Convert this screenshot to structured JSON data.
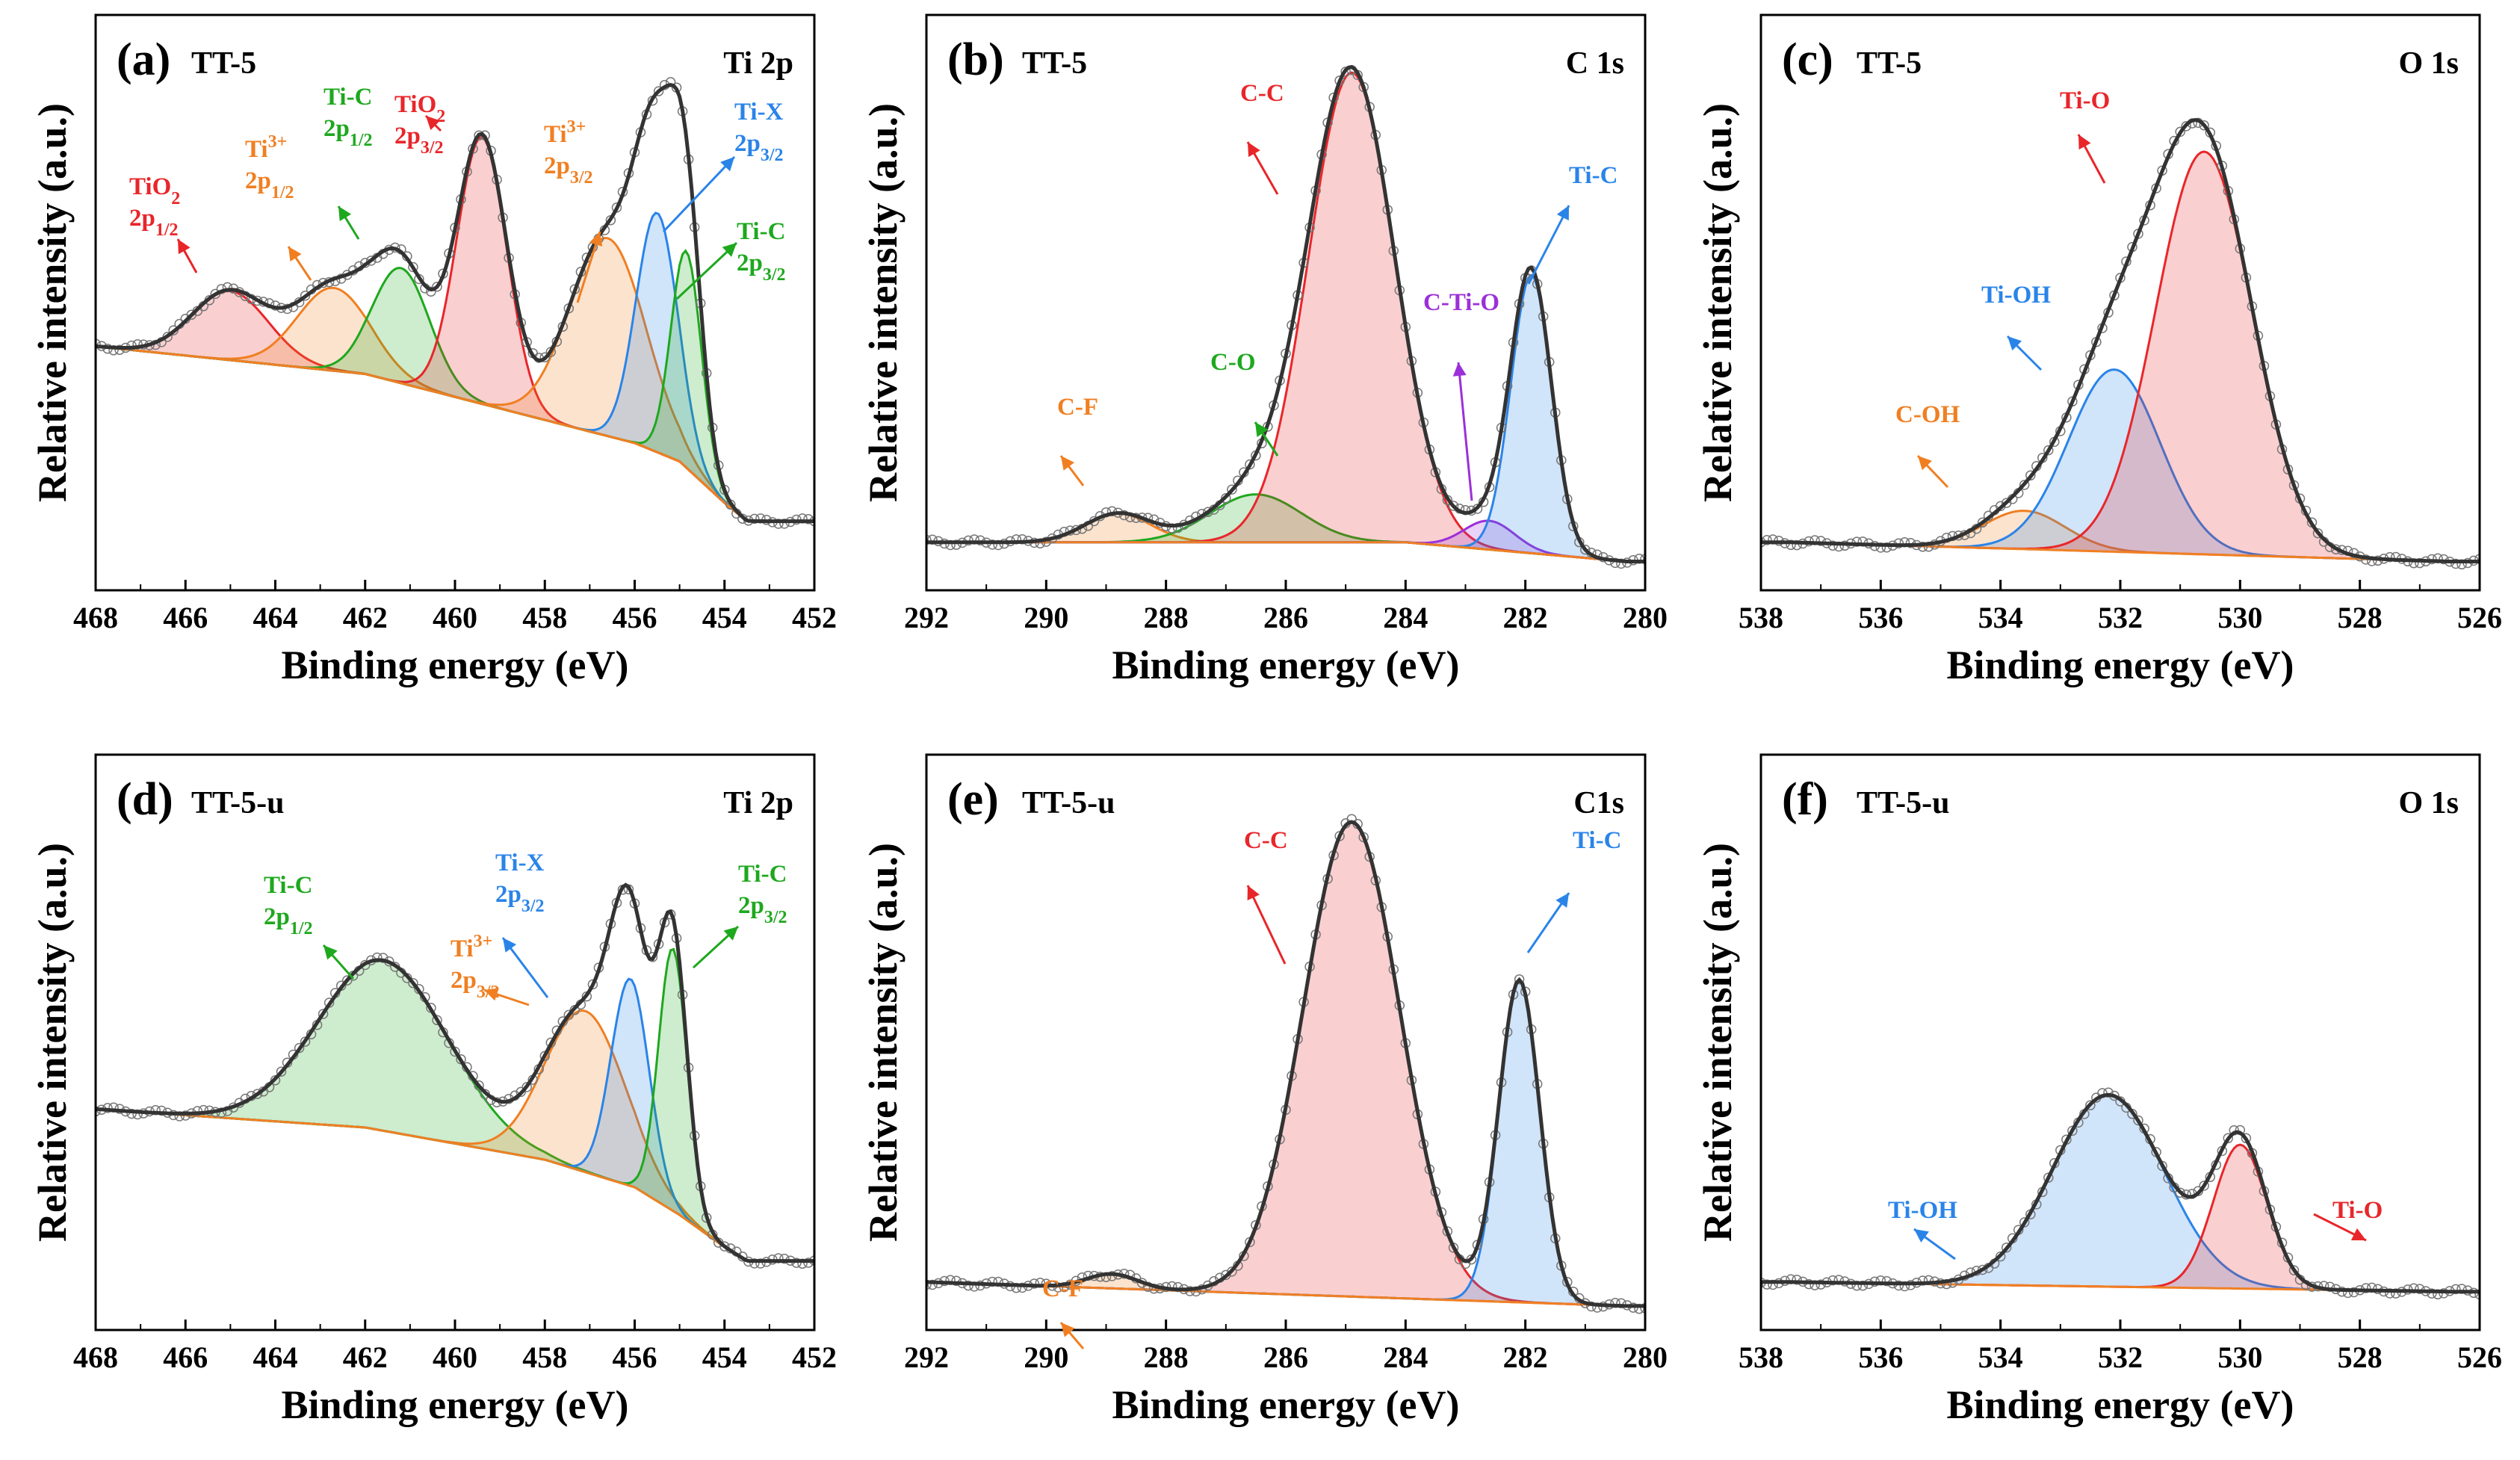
{
  "chart_data": [
    {
      "type": "line",
      "panel": "(a)",
      "sample": "TT-5",
      "region": "Ti 2p",
      "xlabel": "Binding energy (eV)",
      "ylabel": "Relative intensity (a.u.)",
      "xlim": [
        468,
        452
      ],
      "ylim": [
        -0.15,
        1.1
      ],
      "xticks": [
        468,
        466,
        464,
        462,
        460,
        458,
        456,
        454,
        452
      ],
      "background": {
        "xs": [
          468,
          462,
          458,
          456,
          455,
          454,
          453.5,
          452
        ],
        "ys": [
          0.38,
          0.32,
          0.22,
          0.17,
          0.13,
          0.04,
          0.0,
          0.0
        ]
      },
      "peaks": [
        {
          "label": "TiO2 2p1/2",
          "center": 465.0,
          "height": 0.15,
          "fwhm": 2.0,
          "color": "#e8262a"
        },
        {
          "label": "Ti3+ 2p1/2",
          "center": 462.7,
          "height": 0.18,
          "fwhm": 1.9,
          "color": "#f07f22"
        },
        {
          "label": "Ti-C 2p1/2",
          "center": 461.2,
          "height": 0.25,
          "fwhm": 1.5,
          "color": "#1ea81e"
        },
        {
          "label": "TiO2 2p3/2",
          "center": 459.4,
          "height": 0.58,
          "fwhm": 1.3,
          "color": "#e8262a"
        },
        {
          "label": "Ti3+ 2p3/2",
          "center": 456.6,
          "height": 0.43,
          "fwhm": 2.0,
          "color": "#f07f22"
        },
        {
          "label": "Ti-X 2p3/2",
          "center": 455.5,
          "height": 0.52,
          "fwhm": 1.1,
          "color": "#2a84e8"
        },
        {
          "label": "Ti-C 2p3/2",
          "center": 454.85,
          "height": 0.47,
          "fwhm": 0.8,
          "color": "#1ea81e"
        }
      ],
      "annotations": [
        {
          "text": "TiO2",
          "sub": "2",
          "line2": "2p",
          "line2_sub": "1/2",
          "color": "#e8262a"
        },
        {
          "text": "Ti",
          "sup": "3+",
          "line2": "2p",
          "line2_sub": "1/2",
          "color": "#f07f22"
        },
        {
          "text": "Ti-C",
          "line2": "2p",
          "line2_sub": "1/2",
          "color": "#1ea81e"
        },
        {
          "text": "TiO2",
          "sub": "2",
          "line2": "2p",
          "line2_sub": "3/2",
          "color": "#e8262a"
        },
        {
          "text": "Ti",
          "sup": "3+",
          "line2": "2p",
          "line2_sub": "3/2",
          "color": "#f07f22"
        },
        {
          "text": "Ti-X",
          "line2": "2p",
          "line2_sub": "3/2",
          "color": "#2a84e8"
        },
        {
          "text": "Ti-C",
          "line2": "2p",
          "line2_sub": "3/2",
          "color": "#1ea81e"
        }
      ]
    },
    {
      "type": "line",
      "panel": "(b)",
      "sample": "TT-5",
      "region": "C 1s",
      "xlabel": "Binding energy (eV)",
      "ylabel": "Relative intensity (a.u.)",
      "xlim": [
        292,
        280
      ],
      "ylim": [
        -0.1,
        1.1
      ],
      "xticks": [
        292,
        290,
        288,
        286,
        284,
        282,
        280
      ],
      "background": {
        "xs": [
          292,
          284,
          280.3
        ],
        "ys": [
          0.0,
          0.0,
          -0.04
        ]
      },
      "peaks": [
        {
          "label": "C-F",
          "center": 288.8,
          "height": 0.06,
          "fwhm": 1.3,
          "color": "#f07f22"
        },
        {
          "label": "C-O",
          "center": 286.5,
          "height": 0.1,
          "fwhm": 1.8,
          "color": "#1ea81e"
        },
        {
          "label": "C-C",
          "center": 284.9,
          "height": 0.98,
          "fwhm": 1.7,
          "color": "#e8262a"
        },
        {
          "label": "C-Ti-O",
          "center": 282.6,
          "height": 0.06,
          "fwhm": 1.0,
          "color": "#9b30d9"
        },
        {
          "label": "Ti-C",
          "center": 281.9,
          "height": 0.58,
          "fwhm": 0.8,
          "color": "#2a84e8"
        }
      ],
      "annotations": [
        {
          "text": "C-F",
          "color": "#f07f22"
        },
        {
          "text": "C-O",
          "color": "#1ea81e"
        },
        {
          "text": "C-C",
          "color": "#e8262a"
        },
        {
          "text": "C-Ti-O",
          "color": "#9b30d9"
        },
        {
          "text": "Ti-C",
          "color": "#2a84e8"
        }
      ]
    },
    {
      "type": "line",
      "panel": "(c)",
      "sample": "TT-5",
      "region": "O 1s",
      "xlabel": "Binding energy (eV)",
      "ylabel": "Relative intensity (a.u.)",
      "xlim": [
        538,
        526
      ],
      "ylim": [
        -0.1,
        1.1
      ],
      "xticks": [
        538,
        536,
        534,
        532,
        530,
        528,
        526
      ],
      "background": {
        "xs": [
          537.5,
          526.5
        ],
        "ys": [
          0.0,
          -0.04
        ]
      },
      "peaks": [
        {
          "label": "C-OH",
          "center": 533.6,
          "height": 0.08,
          "fwhm": 1.6,
          "color": "#f07f22"
        },
        {
          "label": "Ti-OH",
          "center": 532.1,
          "height": 0.38,
          "fwhm": 1.8,
          "color": "#2a84e8"
        },
        {
          "label": "Ti-O",
          "center": 530.6,
          "height": 0.84,
          "fwhm": 1.9,
          "color": "#e8262a"
        }
      ],
      "annotations": [
        {
          "text": "C-OH",
          "color": "#f07f22"
        },
        {
          "text": "Ti-OH",
          "color": "#2a84e8"
        },
        {
          "text": "Ti-O",
          "color": "#e8262a"
        }
      ]
    },
    {
      "type": "line",
      "panel": "(d)",
      "sample": "TT-5-u",
      "region": "Ti 2p",
      "xlabel": "Binding energy (eV)",
      "ylabel": "Relative intensity (a.u.)",
      "xlim": [
        468,
        452
      ],
      "ylim": [
        -0.15,
        1.1
      ],
      "xticks": [
        468,
        466,
        464,
        462,
        460,
        458,
        456,
        454,
        452
      ],
      "background": {
        "xs": [
          468,
          462,
          458,
          456,
          455,
          454,
          453.5,
          452
        ],
        "ys": [
          0.33,
          0.29,
          0.22,
          0.16,
          0.1,
          0.03,
          0.0,
          0.0
        ]
      },
      "peaks": [
        {
          "label": "Ti-C 2p1/2",
          "center": 461.6,
          "height": 0.37,
          "fwhm": 3.4,
          "color": "#1ea81e"
        },
        {
          "label": "Ti3+ 2p3/2",
          "center": 457.1,
          "height": 0.35,
          "fwhm": 2.1,
          "color": "#f07f22"
        },
        {
          "label": "Ti-X 2p3/2",
          "center": 456.1,
          "height": 0.45,
          "fwhm": 1.0,
          "color": "#2a84e8"
        },
        {
          "label": "Ti-C 2p3/2",
          "center": 455.15,
          "height": 0.57,
          "fwhm": 0.75,
          "color": "#1ea81e"
        }
      ],
      "annotations": [
        {
          "text": "Ti-C",
          "line2": "2p",
          "line2_sub": "1/2",
          "color": "#1ea81e"
        },
        {
          "text": "Ti-X",
          "line2": "2p",
          "line2_sub": "3/2",
          "color": "#2a84e8"
        },
        {
          "text": "Ti",
          "sup": "3+",
          "line2": "2p",
          "line2_sub": "3/2",
          "color": "#f07f22"
        },
        {
          "text": "Ti-C",
          "line2": "2p",
          "line2_sub": "3/2",
          "color": "#1ea81e"
        }
      ]
    },
    {
      "type": "line",
      "panel": "(e)",
      "sample": "TT-5-u",
      "region": "C1s",
      "xlabel": "Binding energy (eV)",
      "ylabel": "Relative intensity (a.u.)",
      "xlim": [
        292,
        280
      ],
      "ylim": [
        -0.1,
        1.1
      ],
      "xticks": [
        292,
        290,
        288,
        286,
        284,
        282,
        280
      ],
      "background": {
        "xs": [
          292,
          280.3
        ],
        "ys": [
          0.0,
          -0.05
        ]
      },
      "peaks": [
        {
          "label": "C-F",
          "center": 288.9,
          "height": 0.03,
          "fwhm": 1.0,
          "color": "#f07f22"
        },
        {
          "label": "C-C",
          "center": 284.9,
          "height": 0.99,
          "fwhm": 1.9,
          "color": "#e8262a"
        },
        {
          "label": "Ti-C",
          "center": 282.1,
          "height": 0.67,
          "fwhm": 0.8,
          "color": "#2a84e8"
        }
      ],
      "annotations": [
        {
          "text": "C-F",
          "color": "#f07f22"
        },
        {
          "text": "C-C",
          "color": "#e8262a"
        },
        {
          "text": "Ti-C",
          "color": "#2a84e8"
        }
      ]
    },
    {
      "type": "line",
      "panel": "(f)",
      "sample": "TT-5-u",
      "region": "O 1s",
      "xlabel": "Binding energy (eV)",
      "ylabel": "Relative intensity (a.u.)",
      "xlim": [
        538,
        526
      ],
      "ylim": [
        -0.1,
        1.1
      ],
      "xticks": [
        538,
        536,
        534,
        532,
        530,
        528,
        526
      ],
      "background": {
        "xs": [
          537.5,
          526.5
        ],
        "ys": [
          0.0,
          -0.02
        ]
      },
      "peaks": [
        {
          "label": "Ti-OH",
          "center": 532.2,
          "height": 0.4,
          "fwhm": 2.2,
          "color": "#2a84e8"
        },
        {
          "label": "Ti-O",
          "center": 530.0,
          "height": 0.3,
          "fwhm": 1.05,
          "color": "#e8262a"
        }
      ],
      "annotations": [
        {
          "text": "Ti-OH",
          "color": "#2a84e8"
        },
        {
          "text": "Ti-O",
          "color": "#e8262a"
        }
      ]
    }
  ]
}
